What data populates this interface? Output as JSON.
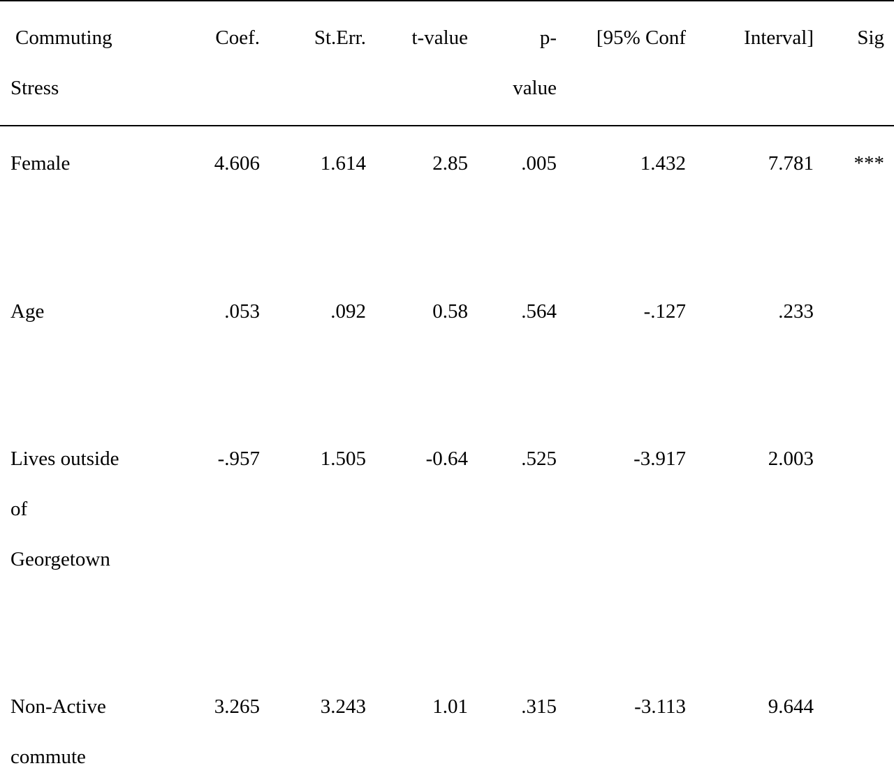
{
  "table": {
    "headers": {
      "col0": [
        "Commuting",
        "Stress"
      ],
      "coef": "Coef.",
      "se": "St.Err.",
      "t": "t-value",
      "p": [
        "p-",
        "value"
      ],
      "ci_low": "[95% Conf",
      "ci_high": "Interval]",
      "sig": "Sig"
    },
    "rows": [
      {
        "label": [
          "Female"
        ],
        "coef": "4.606",
        "se": "1.614",
        "t": "2.85",
        "p": ".005",
        "ci_low": "1.432",
        "ci_high": "7.781",
        "sig": "***"
      },
      {
        "label": [
          "Age"
        ],
        "coef": ".053",
        "se": ".092",
        "t": "0.58",
        "p": ".564",
        "ci_low": "-.127",
        "ci_high": ".233",
        "sig": ""
      },
      {
        "label": [
          "Lives outside",
          "of",
          "Georgetown"
        ],
        "coef": "-.957",
        "se": "1.505",
        "t": "-0.64",
        "p": ".525",
        "ci_low": "-3.917",
        "ci_high": "2.003",
        "sig": ""
      },
      {
        "label": [
          "Non-Active",
          "commute"
        ],
        "coef": "3.265",
        "se": "3.243",
        "t": "1.01",
        "p": ".315",
        "ci_low": "-3.113",
        "ci_high": "9.644",
        "sig": ""
      }
    ]
  }
}
